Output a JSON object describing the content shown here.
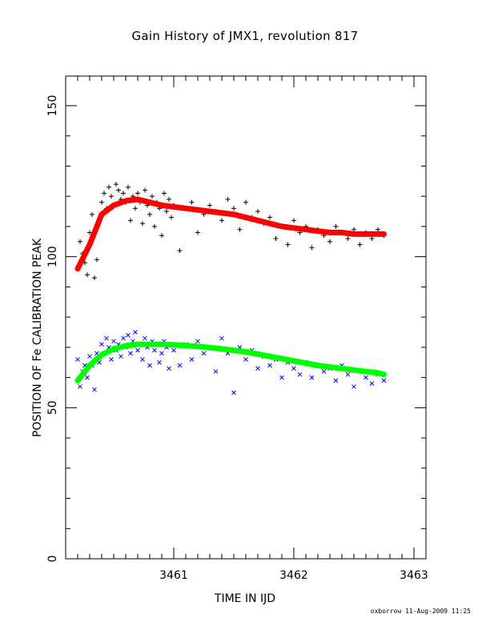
{
  "chart_data": {
    "type": "scatter",
    "title": "Gain History of JMX1, revolution 817",
    "xlabel": "TIME IN IJD",
    "ylabel": "POSITION OF Fe CALIBRATION PEAK",
    "xlim": [
      3460.1,
      3463.1
    ],
    "ylim": [
      0,
      160
    ],
    "x_ticks": [
      3461,
      3462,
      3463
    ],
    "y_ticks": [
      0,
      50,
      100,
      150
    ],
    "grid": false,
    "series": [
      {
        "marker": "+",
        "color": "#000000",
        "points": [
          [
            3460.2,
            96
          ],
          [
            3460.22,
            105
          ],
          [
            3460.24,
            101
          ],
          [
            3460.26,
            98
          ],
          [
            3460.28,
            94
          ],
          [
            3460.3,
            108
          ],
          [
            3460.32,
            114
          ],
          [
            3460.34,
            93
          ],
          [
            3460.36,
            99
          ],
          [
            3460.38,
            112
          ],
          [
            3460.4,
            118
          ],
          [
            3460.42,
            121
          ],
          [
            3460.44,
            116
          ],
          [
            3460.46,
            123
          ],
          [
            3460.48,
            120
          ],
          [
            3460.5,
            117
          ],
          [
            3460.52,
            124
          ],
          [
            3460.54,
            122
          ],
          [
            3460.56,
            119
          ],
          [
            3460.58,
            121
          ],
          [
            3460.6,
            118
          ],
          [
            3460.62,
            123
          ],
          [
            3460.64,
            112
          ],
          [
            3460.66,
            120
          ],
          [
            3460.68,
            116
          ],
          [
            3460.7,
            121
          ],
          [
            3460.72,
            118
          ],
          [
            3460.74,
            111
          ],
          [
            3460.76,
            122
          ],
          [
            3460.78,
            117
          ],
          [
            3460.8,
            114
          ],
          [
            3460.82,
            120
          ],
          [
            3460.84,
            110
          ],
          [
            3460.86,
            118
          ],
          [
            3460.88,
            116
          ],
          [
            3460.9,
            107
          ],
          [
            3460.92,
            121
          ],
          [
            3460.94,
            115
          ],
          [
            3460.96,
            119
          ],
          [
            3460.98,
            113
          ],
          [
            3461.0,
            117
          ],
          [
            3461.05,
            102
          ],
          [
            3461.1,
            116
          ],
          [
            3461.15,
            118
          ],
          [
            3461.2,
            108
          ],
          [
            3461.25,
            114
          ],
          [
            3461.3,
            117
          ],
          [
            3461.35,
            115
          ],
          [
            3461.4,
            112
          ],
          [
            3461.45,
            119
          ],
          [
            3461.5,
            116
          ],
          [
            3461.55,
            109
          ],
          [
            3461.6,
            118
          ],
          [
            3461.65,
            113
          ],
          [
            3461.7,
            115
          ],
          [
            3461.75,
            111
          ],
          [
            3461.8,
            113
          ],
          [
            3461.85,
            106
          ],
          [
            3461.9,
            110
          ],
          [
            3461.95,
            104
          ],
          [
            3462.0,
            112
          ],
          [
            3462.05,
            108
          ],
          [
            3462.1,
            110
          ],
          [
            3462.15,
            103
          ],
          [
            3462.2,
            109
          ],
          [
            3462.25,
            107
          ],
          [
            3462.3,
            105
          ],
          [
            3462.35,
            110
          ],
          [
            3462.4,
            108
          ],
          [
            3462.45,
            106
          ],
          [
            3462.5,
            109
          ],
          [
            3462.55,
            104
          ],
          [
            3462.6,
            108
          ],
          [
            3462.65,
            106
          ],
          [
            3462.7,
            109
          ],
          [
            3462.75,
            107
          ]
        ]
      },
      {
        "marker": "x",
        "color": "#0000ff",
        "points": [
          [
            3460.2,
            66
          ],
          [
            3460.22,
            57
          ],
          [
            3460.24,
            62
          ],
          [
            3460.26,
            64
          ],
          [
            3460.28,
            60
          ],
          [
            3460.3,
            67
          ],
          [
            3460.32,
            64
          ],
          [
            3460.34,
            56
          ],
          [
            3460.36,
            68
          ],
          [
            3460.38,
            65
          ],
          [
            3460.4,
            71
          ],
          [
            3460.42,
            68
          ],
          [
            3460.44,
            73
          ],
          [
            3460.46,
            70
          ],
          [
            3460.48,
            66
          ],
          [
            3460.5,
            72
          ],
          [
            3460.52,
            69
          ],
          [
            3460.54,
            71
          ],
          [
            3460.56,
            67
          ],
          [
            3460.58,
            73
          ],
          [
            3460.6,
            70
          ],
          [
            3460.62,
            74
          ],
          [
            3460.64,
            68
          ],
          [
            3460.66,
            72
          ],
          [
            3460.68,
            75
          ],
          [
            3460.7,
            69
          ],
          [
            3460.72,
            71
          ],
          [
            3460.74,
            66
          ],
          [
            3460.76,
            73
          ],
          [
            3460.78,
            70
          ],
          [
            3460.8,
            64
          ],
          [
            3460.82,
            72
          ],
          [
            3460.84,
            69
          ],
          [
            3460.86,
            71
          ],
          [
            3460.88,
            65
          ],
          [
            3460.9,
            68
          ],
          [
            3460.92,
            72
          ],
          [
            3460.94,
            70
          ],
          [
            3460.96,
            63
          ],
          [
            3460.98,
            71
          ],
          [
            3461.0,
            69
          ],
          [
            3461.05,
            64
          ],
          [
            3461.1,
            71
          ],
          [
            3461.15,
            66
          ],
          [
            3461.2,
            72
          ],
          [
            3461.25,
            68
          ],
          [
            3461.3,
            70
          ],
          [
            3461.35,
            62
          ],
          [
            3461.4,
            73
          ],
          [
            3461.45,
            68
          ],
          [
            3461.5,
            55
          ],
          [
            3461.55,
            70
          ],
          [
            3461.6,
            66
          ],
          [
            3461.65,
            69
          ],
          [
            3461.7,
            63
          ],
          [
            3461.75,
            67
          ],
          [
            3461.8,
            64
          ],
          [
            3461.85,
            66
          ],
          [
            3461.9,
            60
          ],
          [
            3461.95,
            65
          ],
          [
            3462.0,
            63
          ],
          [
            3462.05,
            61
          ],
          [
            3462.1,
            65
          ],
          [
            3462.15,
            60
          ],
          [
            3462.2,
            64
          ],
          [
            3462.25,
            62
          ],
          [
            3462.3,
            63
          ],
          [
            3462.35,
            59
          ],
          [
            3462.4,
            64
          ],
          [
            3462.45,
            61
          ],
          [
            3462.5,
            57
          ],
          [
            3462.55,
            62
          ],
          [
            3462.6,
            60
          ],
          [
            3462.65,
            58
          ],
          [
            3462.7,
            61
          ],
          [
            3462.75,
            59
          ]
        ]
      },
      {
        "marker": "line",
        "color": "#ff0000",
        "points": [
          [
            3460.2,
            96
          ],
          [
            3460.3,
            104
          ],
          [
            3460.4,
            114
          ],
          [
            3460.5,
            117
          ],
          [
            3460.6,
            118.5
          ],
          [
            3460.7,
            119
          ],
          [
            3460.8,
            118
          ],
          [
            3460.9,
            117
          ],
          [
            3461.0,
            116.5
          ],
          [
            3461.1,
            116
          ],
          [
            3461.2,
            115.5
          ],
          [
            3461.3,
            115
          ],
          [
            3461.4,
            114.5
          ],
          [
            3461.5,
            114
          ],
          [
            3461.6,
            113
          ],
          [
            3461.7,
            112
          ],
          [
            3461.8,
            111
          ],
          [
            3461.9,
            110
          ],
          [
            3462.0,
            109.5
          ],
          [
            3462.1,
            109
          ],
          [
            3462.2,
            108.5
          ],
          [
            3462.3,
            108
          ],
          [
            3462.4,
            108
          ],
          [
            3462.5,
            107.5
          ],
          [
            3462.6,
            107.5
          ],
          [
            3462.7,
            107.5
          ],
          [
            3462.75,
            107.5
          ]
        ]
      },
      {
        "marker": "line",
        "color": "#00ff00",
        "points": [
          [
            3460.2,
            59
          ],
          [
            3460.3,
            64
          ],
          [
            3460.4,
            67.5
          ],
          [
            3460.5,
            69.5
          ],
          [
            3460.6,
            70.5
          ],
          [
            3460.7,
            71
          ],
          [
            3460.8,
            71
          ],
          [
            3460.9,
            71
          ],
          [
            3461.0,
            70.8
          ],
          [
            3461.2,
            70.3
          ],
          [
            3461.4,
            69.5
          ],
          [
            3461.6,
            68.5
          ],
          [
            3461.8,
            67
          ],
          [
            3462.0,
            65.5
          ],
          [
            3462.2,
            64
          ],
          [
            3462.4,
            63
          ],
          [
            3462.5,
            62.5
          ],
          [
            3462.6,
            62
          ],
          [
            3462.7,
            61.5
          ],
          [
            3462.75,
            61
          ]
        ]
      }
    ]
  },
  "footer": "oxborrow 11-Aug-2009 11:25"
}
